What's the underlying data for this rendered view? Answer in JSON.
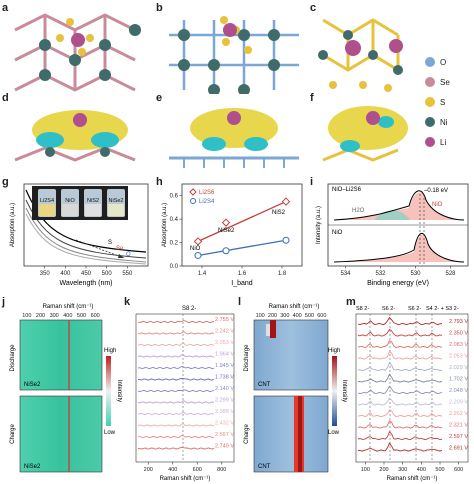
{
  "panel_letters": [
    "a",
    "b",
    "c",
    "d",
    "e",
    "f",
    "g",
    "h",
    "i",
    "j",
    "k",
    "l",
    "m"
  ],
  "legend": {
    "items": [
      {
        "symbol": "O",
        "label": "O",
        "color": "#7aa7d6"
      },
      {
        "symbol": "Se",
        "label": "Se",
        "color": "#c98b9a"
      },
      {
        "symbol": "S",
        "label": "S",
        "color": "#e7c23a"
      },
      {
        "symbol": "Ni",
        "label": "Ni",
        "color": "#3f6b6a"
      },
      {
        "symbol": "Li",
        "label": "Li",
        "color": "#b04f8d"
      }
    ]
  },
  "colors": {
    "se": "#c98b9a",
    "s": "#e7c23a",
    "ni": "#3f6b6a",
    "li": "#b04f8d",
    "o": "#7aa7d6",
    "charge_yellow": "#e6d33a",
    "charge_cyan": "#2fc0c7"
  },
  "chart_data": [
    {
      "panel": "g",
      "type": "line",
      "ylabel": "Absorption (a.u.)",
      "xlabel": "Wavelength (nm)",
      "xlim": [
        300,
        600
      ],
      "xticks": [
        "350",
        "400",
        "450",
        "500",
        "550"
      ],
      "series": [
        {
          "name": "Li2S4",
          "color": "#000000"
        },
        {
          "name": "NiO",
          "color": "#555555"
        },
        {
          "name": "NiS2",
          "color": "#888888"
        },
        {
          "name": "NiSe2",
          "color": "#aaaaaa"
        }
      ],
      "inset_labels": [
        "Li2S4",
        "NiO",
        "NiS2",
        "NiSe2"
      ],
      "annotations": [
        "S",
        "Se",
        "O"
      ]
    },
    {
      "panel": "h",
      "type": "scatter",
      "ylabel": "Absorption (a.u.)",
      "xlabel": "I_band",
      "xlim": [
        1.3,
        1.9
      ],
      "ylim": [
        0.0,
        0.7
      ],
      "xticks": [
        "1.4",
        "1.6",
        "1.8"
      ],
      "yticks": [
        "0.0",
        "0.2",
        "0.4",
        "0.6"
      ],
      "series": [
        {
          "name": "Li2S6",
          "color": "#c2423a",
          "marker": "diamond",
          "x": [
            1.38,
            1.52,
            1.82
          ],
          "y": [
            0.21,
            0.37,
            0.55
          ]
        },
        {
          "name": "Li2S4",
          "color": "#3b6fb6",
          "marker": "circle",
          "x": [
            1.38,
            1.52,
            1.82
          ],
          "y": [
            0.09,
            0.13,
            0.22
          ]
        }
      ],
      "point_labels": [
        "NiO",
        "NiSe2",
        "NiS2"
      ]
    },
    {
      "panel": "i",
      "type": "line",
      "ylabel": "Intensity (a.u.)",
      "xlabel": "Binding energy (eV)",
      "xticks": [
        "534",
        "532",
        "530",
        "528"
      ],
      "labels": {
        "top": "NiO–Li2S6",
        "bottom": "NiO",
        "shift": "–0.18 eV",
        "h2o": "H2O",
        "nio": "NiO"
      }
    },
    {
      "panel": "j",
      "type": "heatmap",
      "title": "Raman shift (cm⁻¹)",
      "xticks": [
        "100",
        "200",
        "300",
        "400",
        "500",
        "600"
      ],
      "labels": {
        "discharge": "Discharge",
        "charge": "Charge",
        "material": "NiSe2",
        "high": "High",
        "low": "Low",
        "cbar": "Intensity"
      }
    },
    {
      "panel": "k",
      "type": "line",
      "xlabel": "Raman shift (cm⁻¹)",
      "xticks": [
        "200",
        "400",
        "600",
        "800"
      ],
      "peak_label": "S8 2-",
      "voltages": [
        "2.755 V",
        "2.242 V",
        "2.053 V",
        "1.964 V",
        "1.945 V",
        "1.738 V",
        "2.140 V",
        "2.299 V",
        "2.388 V",
        "2.432 V",
        "2.597 V",
        "2.749 V"
      ]
    },
    {
      "panel": "l",
      "type": "heatmap",
      "title": "Raman shift (cm⁻¹)",
      "xticks": [
        "100",
        "200",
        "300",
        "400",
        "500",
        "600"
      ],
      "labels": {
        "discharge": "Discharge",
        "charge": "Charge",
        "material": "CNT",
        "high": "High",
        "low": "Low",
        "cbar": "Intensity"
      }
    },
    {
      "panel": "m",
      "type": "line",
      "xlabel": "Raman shift (cm⁻¹)",
      "xticks": [
        "100",
        "200",
        "300",
        "400",
        "500",
        "600"
      ],
      "peak_labels": [
        "S8 2-",
        "S6 2-",
        "S6 2-",
        "S4 2- + S3 2-"
      ],
      "voltages": [
        "2.793 V",
        "2.350 V",
        "2.083 V",
        "2.053 V",
        "2.029 V",
        "1.702 V",
        "2.048 V",
        "2.209 V",
        "2.262 V",
        "2.321 V",
        "2.597 V",
        "2.691 V"
      ]
    }
  ]
}
